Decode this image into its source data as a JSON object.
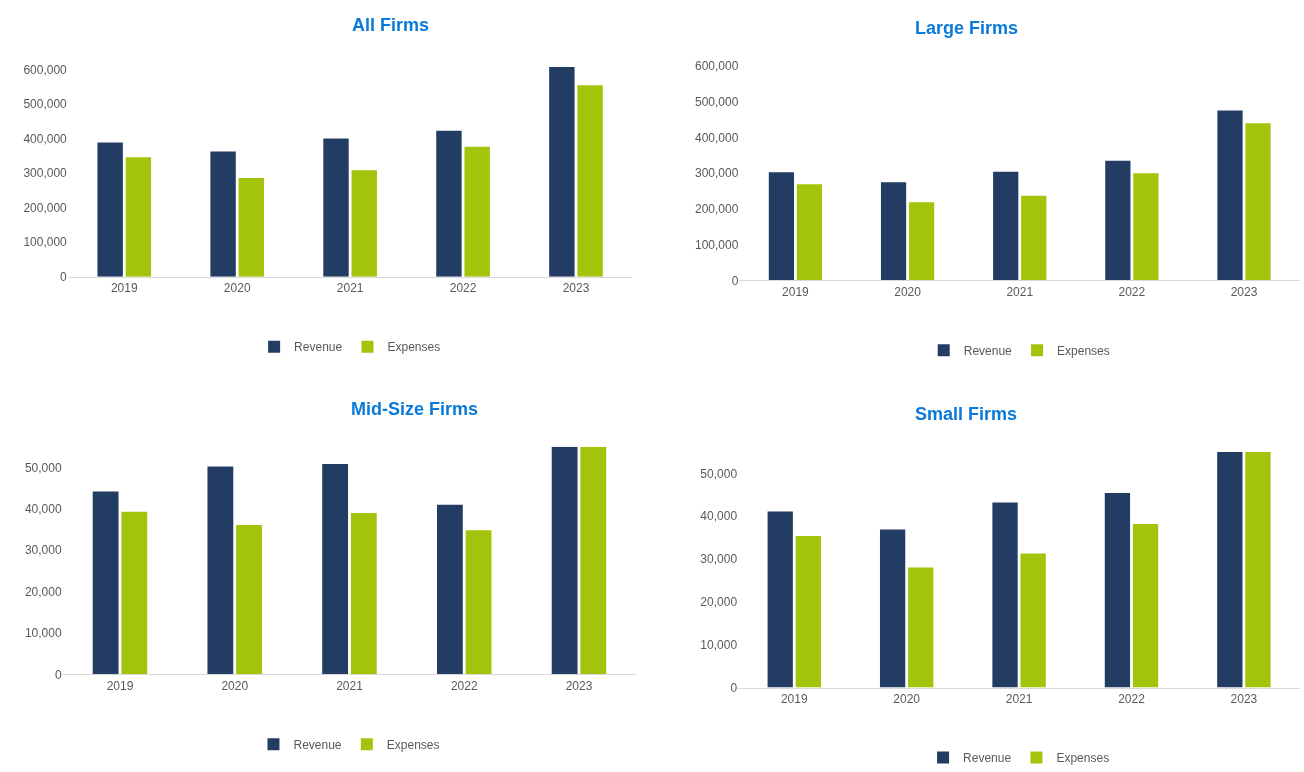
{
  "chart_data": [
    {
      "type": "bar",
      "title": "All Firms",
      "categories": [
        "2019",
        "2020",
        "2021",
        "2022",
        "2023"
      ],
      "series": [
        {
          "name": "Revenue",
          "color": "#223c63",
          "values": [
            388000,
            362000,
            400000,
            422000,
            607000
          ]
        },
        {
          "name": "Expenses",
          "color": "#a2c40a",
          "values": [
            346000,
            286000,
            308000,
            376000,
            554000
          ]
        }
      ],
      "ylim": [
        0,
        620000
      ],
      "yticks": [
        0,
        {
          "value": 100000,
          "label": "100,000"
        },
        {
          "value": 200000,
          "label": "200,000"
        },
        {
          "value": 300000,
          "label": "300,000"
        },
        {
          "value": 400000,
          "label": "400,000"
        },
        {
          "value": 500000,
          "label": "500,000"
        },
        {
          "value": 600000,
          "label": "600,000"
        }
      ],
      "grid": false,
      "legend": "bottom"
    },
    {
      "type": "bar",
      "title": "Large Firms",
      "categories": [
        "2019",
        "2020",
        "2021",
        "2022",
        "2023"
      ],
      "series": [
        {
          "name": "Revenue",
          "color": "#223c63",
          "values": [
            303000,
            275000,
            304000,
            335000,
            476000
          ]
        },
        {
          "name": "Expenses",
          "color": "#a2c40a",
          "values": [
            269000,
            219000,
            237000,
            300000,
            440000
          ]
        }
      ],
      "ylim": [
        0,
        600000
      ],
      "yticks": [
        0,
        {
          "value": 100000,
          "label": "100,000"
        },
        {
          "value": 200000,
          "label": "200,000"
        },
        {
          "value": 300000,
          "label": "300,000"
        },
        {
          "value": 400000,
          "label": "400,000"
        },
        {
          "value": 500000,
          "label": "500,000"
        },
        {
          "value": 600000,
          "label": "600,000"
        }
      ],
      "grid": false,
      "legend": "bottom"
    },
    {
      "type": "bar",
      "title": "Mid-Size Firms",
      "categories": [
        "2019",
        "2020",
        "2021",
        "2022",
        "2023"
      ],
      "series": [
        {
          "name": "Revenue",
          "color": "#223c63",
          "values": [
            44200,
            50200,
            50800,
            41000,
            55000
          ]
        },
        {
          "name": "Expenses",
          "color": "#a2c40a",
          "values": [
            39300,
            36100,
            39000,
            34800,
            55000
          ]
        }
      ],
      "ylim": [
        0,
        55000
      ],
      "yticks": [
        0,
        {
          "value": 10000,
          "label": "10,000"
        },
        {
          "value": 20000,
          "label": "20,000"
        },
        {
          "value": 30000,
          "label": "30,000"
        },
        {
          "value": 40000,
          "label": "40,000"
        },
        {
          "value": 50000,
          "label": "50,000"
        }
      ],
      "grid": false,
      "legend": "bottom"
    },
    {
      "type": "bar",
      "title": "Small Firms",
      "categories": [
        "2019",
        "2020",
        "2021",
        "2022",
        "2023"
      ],
      "series": [
        {
          "name": "Revenue",
          "color": "#223c63",
          "values": [
            41100,
            36900,
            43200,
            45400,
            55000
          ]
        },
        {
          "name": "Expenses",
          "color": "#a2c40a",
          "values": [
            35400,
            28000,
            31300,
            38200,
            55000
          ]
        }
      ],
      "ylim": [
        0,
        55000
      ],
      "yticks": [
        0,
        {
          "value": 10000,
          "label": "10,000"
        },
        {
          "value": 20000,
          "label": "20,000"
        },
        {
          "value": 30000,
          "label": "30,000"
        },
        {
          "value": 40000,
          "label": "40,000"
        },
        {
          "value": 50000,
          "label": "50,000"
        }
      ],
      "grid": false,
      "legend": "bottom"
    }
  ]
}
